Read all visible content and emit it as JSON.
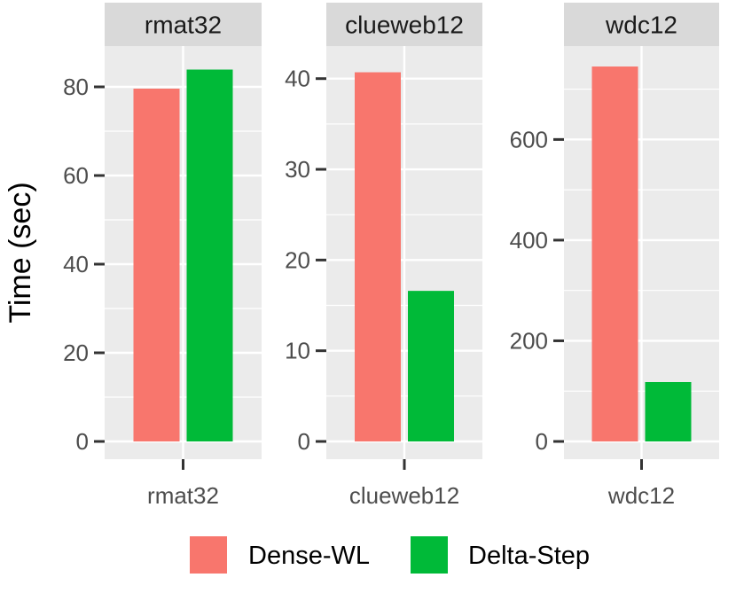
{
  "chart_data": {
    "type": "bar",
    "layout": "faceted",
    "ylabel": "Time (sec)",
    "legend": {
      "position": "bottom",
      "entries": [
        {
          "name": "Dense-WL",
          "color": "#F8766D"
        },
        {
          "name": "Delta-Step",
          "color": "#00BA38"
        }
      ]
    },
    "facets": [
      {
        "title": "rmat32",
        "category": "rmat32",
        "ylim": [
          0,
          88
        ],
        "yticks": [
          0,
          20,
          40,
          60,
          80
        ],
        "series": [
          {
            "name": "Dense-WL",
            "value": 79.6
          },
          {
            "name": "Delta-Step",
            "value": 83.9
          }
        ]
      },
      {
        "title": "clueweb12",
        "category": "clueweb12",
        "ylim": [
          0,
          43
        ],
        "yticks": [
          0,
          10,
          20,
          30,
          40
        ],
        "series": [
          {
            "name": "Dense-WL",
            "value": 40.7
          },
          {
            "name": "Delta-Step",
            "value": 16.6
          }
        ]
      },
      {
        "title": "wdc12",
        "category": "wdc12",
        "ylim": [
          0,
          775
        ],
        "yticks": [
          0,
          200,
          400,
          600
        ],
        "series": [
          {
            "name": "Dense-WL",
            "value": 745
          },
          {
            "name": "Delta-Step",
            "value": 118
          }
        ]
      }
    ]
  }
}
